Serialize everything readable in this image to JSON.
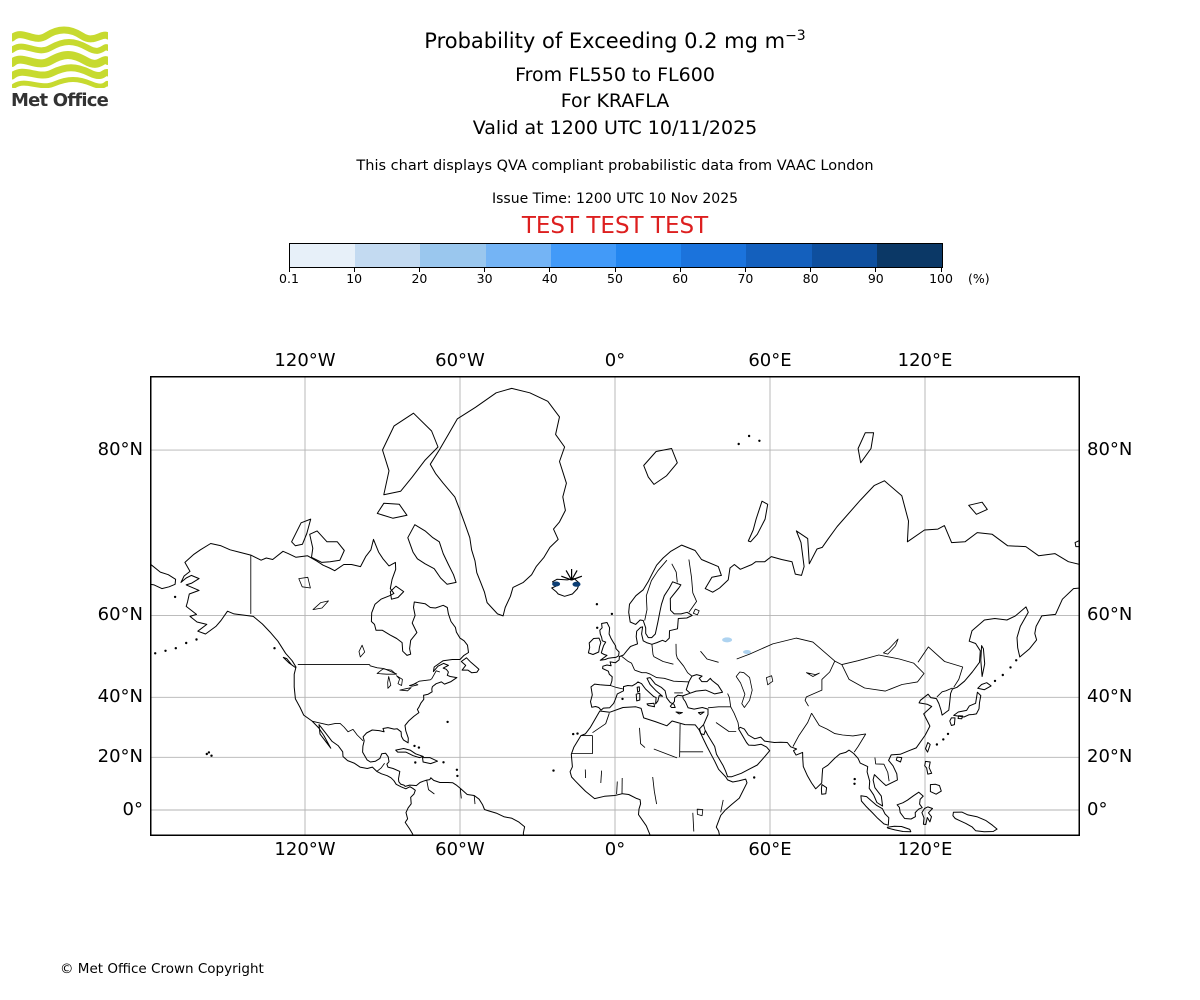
{
  "header": {
    "title_main": "Probability of Exceeding 0.2 mg m",
    "title_sup": "−3",
    "subtitle_levels": "From FL550 to FL600",
    "subtitle_volcano": "For KRAFLA",
    "subtitle_valid": "Valid at 1200 UTC 10/11/2025",
    "description": "This chart displays QVA compliant probabilistic data from VAAC London",
    "issue_time": "Issue Time: 1200 UTC 10 Nov 2025",
    "test_banner": "TEST TEST TEST",
    "test_banner_color": "#dd1f1f"
  },
  "branding": {
    "logo_text": "Met Office",
    "logo_green": "#c7da2f"
  },
  "colorbar": {
    "tick_labels": [
      "0.1",
      "10",
      "20",
      "30",
      "40",
      "50",
      "60",
      "70",
      "80",
      "90",
      "100"
    ],
    "unit_label": "(%)",
    "segment_colors": [
      "#e7f0f9",
      "#c3daf1",
      "#9ac7ee",
      "#74b4f5",
      "#429af8",
      "#2386f0",
      "#1b73dc",
      "#1460bd",
      "#0e4f9e",
      "#0b3866"
    ]
  },
  "map": {
    "x_tick_labels": [
      "120°W",
      "60°W",
      "0°",
      "60°E",
      "120°E"
    ],
    "x_tick_lons": [
      -120,
      -60,
      0,
      60,
      120
    ],
    "y_tick_labels": [
      "80°N",
      "60°N",
      "40°N",
      "20°N",
      "0°"
    ],
    "y_tick_lats": [
      80,
      60,
      40,
      20,
      0
    ],
    "extent": {
      "lon_min": -180,
      "lon_max": 180,
      "lat_min": -10.1,
      "lat_max": 83.9
    },
    "grid_color": "#b3b3b3",
    "coast_color": "#000000",
    "volcano": {
      "name": "KRAFLA",
      "lon": -16.8,
      "lat": 65.72
    },
    "high_probability_cells": [
      {
        "lon": -22.8,
        "lat": 65.55
      },
      {
        "lon": -14.9,
        "lat": 65.5
      }
    ],
    "high_prob_color": "#0b3d73",
    "low_probability_cells": [
      {
        "lon": 43.4,
        "lat": 54.9,
        "rx": 5,
        "ry": 2.5
      },
      {
        "lon": 51.1,
        "lat": 52.1,
        "rx": 4,
        "ry": 2
      }
    ],
    "low_prob_color": "#aed3f0"
  },
  "footer": {
    "copyright": "© Met Office Crown Copyright"
  }
}
